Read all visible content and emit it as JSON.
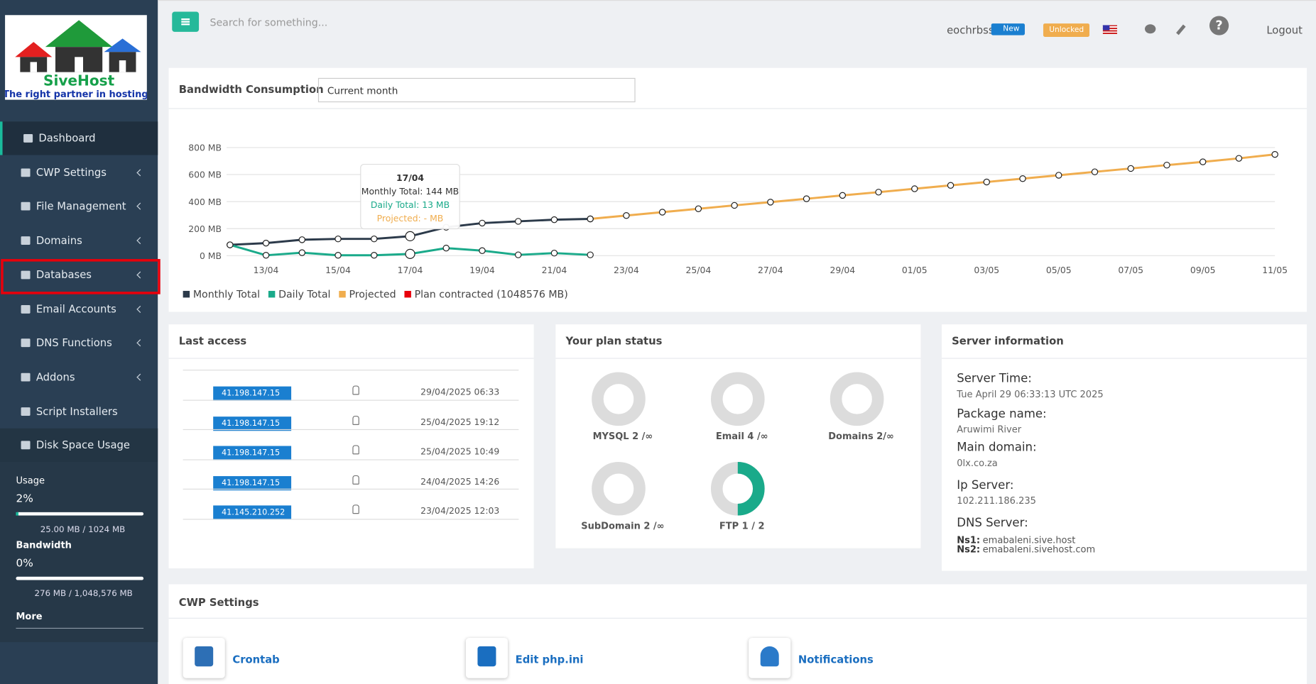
{
  "sidebar": {
    "logo": {
      "name": "SiveHost",
      "tagline": "The right partner in hosting"
    },
    "menu": [
      "Dashboard",
      "CWP Settings",
      "File Management",
      "Domains",
      "Databases",
      "Email Accounts",
      "DNS Functions",
      "Addons",
      "Script Installers",
      "Disk Space Usage"
    ],
    "usage": {
      "label": "Usage",
      "percent": "2%",
      "detail": "25.00 MB / 1024 MB"
    },
    "bandwidth": {
      "label": "Bandwidth",
      "percent": "0%",
      "detail": "276 MB / 1,048,576 MB"
    },
    "more": "More"
  },
  "topbar": {
    "search_placeholder": "Search for something...",
    "user": "eochrbss",
    "badge_new": "New",
    "badge_unlocked": "Unlocked",
    "logout": "Logout"
  },
  "bandwidth": {
    "title": "Bandwidth Consumption",
    "select": "Current month",
    "chart": {
      "type": "line",
      "categories": [
        null,
        "13/04",
        null,
        "15/04",
        null,
        "17/04",
        null,
        "19/04",
        null,
        "21/04",
        null,
        "23/04",
        null,
        "25/04",
        null,
        "27/04",
        null,
        "29/04",
        null,
        "01/05",
        null,
        "03/05",
        null,
        "05/05",
        null,
        "07/05",
        null,
        "09/05",
        null,
        "11/05"
      ],
      "series": [
        {
          "name": "Monthly Total",
          "color": "#2c3a4a",
          "values": [
            80,
            93,
            118,
            124,
            124,
            144,
            210,
            241,
            254,
            266,
            272,
            null,
            null,
            null,
            null,
            null,
            null,
            null,
            null,
            null,
            null,
            null,
            null,
            null,
            null,
            null,
            null,
            null,
            null,
            null
          ]
        },
        {
          "name": "Daily Total",
          "color": "#1aaa8a",
          "values": [
            80,
            3,
            22,
            3,
            3,
            13,
            56,
            37,
            6,
            19,
            6,
            null,
            null,
            null,
            null,
            null,
            null,
            null,
            null,
            null,
            null,
            null,
            null,
            null,
            null,
            null,
            null,
            null,
            null,
            null
          ]
        },
        {
          "name": "Projected",
          "color": "#f0ad4e",
          "values": [
            null,
            null,
            null,
            null,
            null,
            null,
            null,
            null,
            null,
            null,
            272,
            297,
            322,
            347,
            372,
            396,
            421,
            446,
            470,
            495,
            520,
            545,
            570,
            595,
            620,
            645,
            670,
            694,
            720,
            749
          ]
        }
      ],
      "extra_legend": {
        "name": "Plan contracted (1048576 MB)",
        "color": "#e8000b"
      },
      "ylim": [
        0,
        800
      ],
      "yticks": [
        {
          "value": 0,
          "label": "0 MB"
        },
        {
          "value": 200,
          "label": "200 MB"
        },
        {
          "value": 400,
          "label": "400 MB"
        },
        {
          "value": 600,
          "label": "600 MB"
        },
        {
          "value": 800,
          "label": "800 MB"
        }
      ],
      "grid": true,
      "tooltip": {
        "title": "17/04",
        "monthly": "Monthly Total: 144 MB",
        "daily": "Daily Total: 13 MB",
        "projected": "Projected: - MB"
      }
    }
  },
  "last_access": {
    "title": "Last access",
    "rows": [
      {
        "ip": "41.198.147.15",
        "date": "29/04/2025 06:33"
      },
      {
        "ip": "41.198.147.15",
        "date": "25/04/2025 19:12"
      },
      {
        "ip": "41.198.147.15",
        "date": "25/04/2025 10:49"
      },
      {
        "ip": "41.198.147.15",
        "date": "24/04/2025 14:26"
      },
      {
        "ip": "41.145.210.252",
        "date": "23/04/2025 12:03"
      }
    ]
  },
  "plan_status": {
    "title": "Your plan status",
    "items": [
      "MYSQL 2 /∞",
      "Email 4 /∞",
      "Domains 2/∞",
      "SubDomain 2 /∞",
      "FTP 1 / 2"
    ]
  },
  "server_info": {
    "title": "Server information",
    "fields": [
      {
        "label": "Server Time:",
        "value": "Tue April 29 06:33:13 UTC 2025"
      },
      {
        "label": "Package name:",
        "value": "Aruwimi River"
      },
      {
        "label": "Main domain:",
        "value": "0lx.co.za"
      },
      {
        "label": "Ip Server:",
        "value": "102.211.186.235"
      }
    ],
    "dns_label": "DNS Server:",
    "ns": [
      {
        "label": "Ns1:",
        "value": "emabaleni.sive.host"
      },
      {
        "label": "Ns2:",
        "value": "emabaleni.sivehost.com"
      }
    ]
  },
  "cwp_settings": {
    "title": "CWP Settings",
    "items": [
      "Crontab",
      "Edit php.ini",
      "Notifications"
    ]
  }
}
